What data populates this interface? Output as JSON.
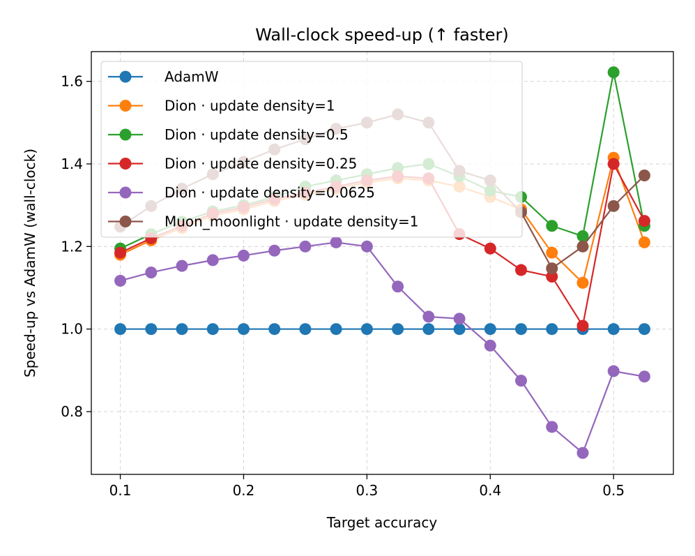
{
  "chart_data": {
    "type": "line",
    "title": "Wall-clock speed-up (↑ faster)",
    "xlabel": "Target accuracy",
    "ylabel": "Speed-up vs AdamW (wall-clock)",
    "x": [
      0.1,
      0.125,
      0.15,
      0.175,
      0.2,
      0.225,
      0.25,
      0.275,
      0.3,
      0.325,
      0.35,
      0.375,
      0.4,
      0.425,
      0.45,
      0.475,
      0.5,
      0.525
    ],
    "xlim": [
      0.0765,
      0.5485
    ],
    "ylim": [
      0.648,
      1.672
    ],
    "xticks": [
      0.1,
      0.2,
      0.3,
      0.4,
      0.5
    ],
    "xtick_labels": [
      "0.1",
      "0.2",
      "0.3",
      "0.4",
      "0.5"
    ],
    "yticks": [
      0.8,
      1.0,
      1.2,
      1.4,
      1.6
    ],
    "ytick_labels": [
      "0.8",
      "1.0",
      "1.2",
      "1.4",
      "1.6"
    ],
    "grid": true,
    "legend_position": "upper-left",
    "series": [
      {
        "name": "AdamW",
        "color": "#1f77b4",
        "values": [
          1.0,
          1.0,
          1.0,
          1.0,
          1.0,
          1.0,
          1.0,
          1.0,
          1.0,
          1.0,
          1.0,
          1.0,
          1.0,
          1.0,
          1.0,
          1.0,
          1.0,
          1.0
        ]
      },
      {
        "name": "Dion · update density=1",
        "color": "#ff7f0e",
        "values": [
          1.18,
          1.215,
          1.245,
          1.275,
          1.29,
          1.31,
          1.325,
          1.34,
          1.355,
          1.365,
          1.36,
          1.345,
          1.32,
          1.29,
          1.185,
          1.112,
          1.415,
          1.21
        ]
      },
      {
        "name": "Dion · update density=0.5",
        "color": "#2ca02c",
        "values": [
          1.195,
          1.23,
          1.26,
          1.285,
          1.3,
          1.32,
          1.345,
          1.36,
          1.375,
          1.39,
          1.4,
          1.37,
          1.335,
          1.32,
          1.25,
          1.225,
          1.622,
          1.25
        ]
      },
      {
        "name": "Dion · update density=0.25",
        "color": "#d62728",
        "values": [
          1.185,
          1.22,
          1.25,
          1.28,
          1.295,
          1.315,
          1.33,
          1.345,
          1.36,
          1.37,
          1.365,
          1.23,
          1.195,
          1.143,
          1.127,
          1.008,
          1.4,
          1.262
        ]
      },
      {
        "name": "Dion · update density=0.0625",
        "color": "#9467bd",
        "values": [
          1.117,
          1.137,
          1.153,
          1.167,
          1.178,
          1.19,
          1.2,
          1.21,
          1.2,
          1.103,
          1.03,
          1.025,
          0.96,
          0.875,
          0.763,
          0.7,
          0.898,
          0.885
        ]
      },
      {
        "name": "Muon_moonlight · update density=1",
        "color": "#8c564b",
        "values": [
          1.248,
          1.298,
          1.34,
          1.375,
          1.405,
          1.435,
          1.46,
          1.485,
          1.5,
          1.52,
          1.5,
          1.383,
          1.36,
          1.283,
          1.147,
          1.2,
          1.298,
          1.372
        ]
      }
    ]
  }
}
